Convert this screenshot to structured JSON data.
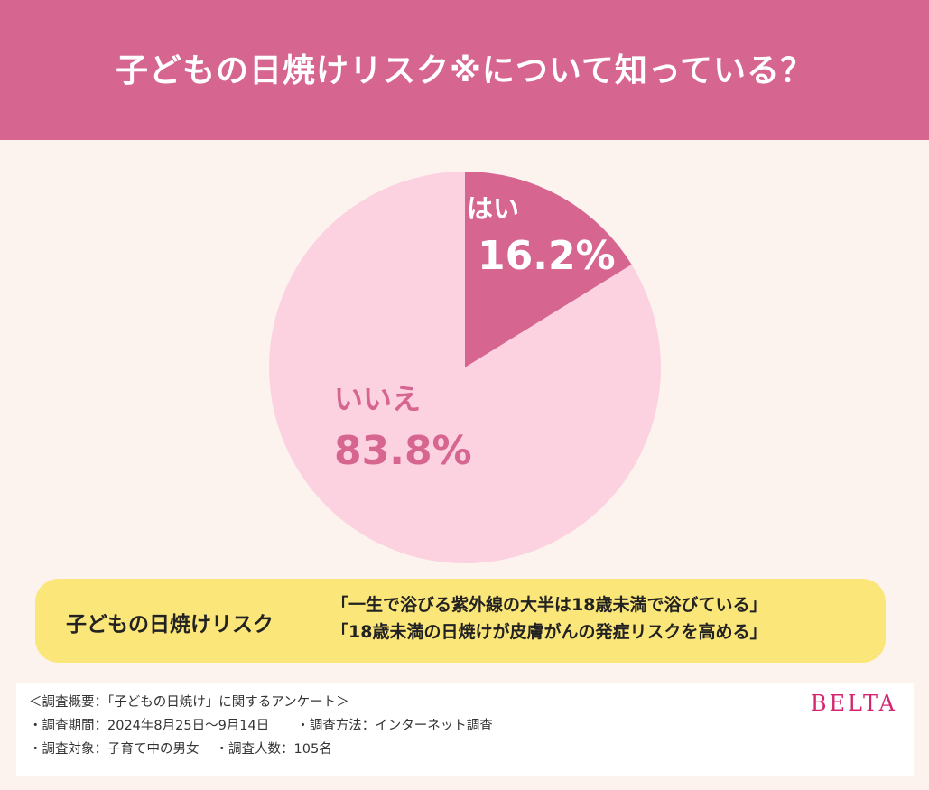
{
  "header": {
    "title": "子どもの日焼けリスク※について知っている？"
  },
  "colors": {
    "header_bg": "#d66590",
    "yes_slice": "#d66590",
    "no_slice": "#fcd2e1",
    "no_label": "#d66590",
    "callout_bg": "#fbe67a",
    "brand": "#d4266f",
    "page_bg": "#fdf3ee"
  },
  "chart_data": {
    "type": "pie",
    "title": "子どもの日焼けリスク※について知っている？",
    "slices": [
      {
        "label": "はい",
        "value": 16.2,
        "value_label": "16.2%"
      },
      {
        "label": "いいえ",
        "value": 83.8,
        "value_label": "83.8%"
      }
    ]
  },
  "callout": {
    "label": "子どもの日焼けリスク",
    "lines": [
      "「一生で浴びる紫外線の大半は18歳未満で浴びている」",
      "「18歳未満の日焼けが皮膚がんの発症リスクを高める」"
    ]
  },
  "footer": {
    "overview": "＜調査概要：「子どもの日焼け」に関するアンケート＞",
    "period": "・調査期間：2024年8月25日〜9月14日",
    "method": "・調査方法：インターネット調査",
    "target": "・調査対象：子育て中の男女",
    "count": "・調査人数：105名",
    "brand": "BELTA"
  }
}
